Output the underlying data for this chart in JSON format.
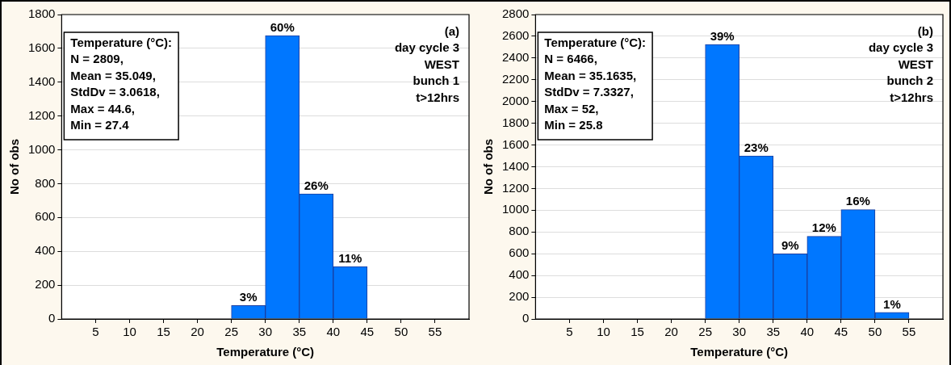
{
  "chart_data": [
    {
      "type": "histogram",
      "xlabel": "Temperature (°C)",
      "ylabel": "No of obs",
      "bins": [
        25,
        30,
        35,
        40,
        45
      ],
      "values": [
        80,
        1675,
        740,
        310
      ],
      "color": "#0077ff",
      "xlim": [
        0,
        60
      ],
      "xticks": [
        5,
        10,
        15,
        20,
        25,
        30,
        35,
        40,
        45,
        50,
        55
      ],
      "ylim": [
        0,
        1800
      ],
      "yticks": [
        0,
        200,
        400,
        600,
        800,
        1000,
        1200,
        1400,
        1600,
        1800
      ],
      "grid": "y",
      "annotations": [
        "Temperature (°C):\nN = 2809,\nMean = 35.049,\nStdDv = 3.0618,\nMax = 44.6,\nMin = 27.4",
        "(a)\nday cycle 3\nWEST\nbunch 1\nt>12hrs",
        {
          "text": "3%",
          "x": 27.5,
          "y": 80
        },
        {
          "text": "60%",
          "x": 32.5,
          "y": 1675
        },
        {
          "text": "26%",
          "x": 37.5,
          "y": 740
        },
        {
          "text": "11%",
          "x": 42.5,
          "y": 310
        }
      ]
    },
    {
      "type": "histogram",
      "xlabel": "Temperature (°C)",
      "ylabel": "No of obs",
      "bins": [
        25,
        30,
        35,
        40,
        45,
        50,
        55
      ],
      "values": [
        2525,
        1500,
        600,
        760,
        1005,
        60
      ],
      "color": "#0077ff",
      "xlim": [
        0,
        60
      ],
      "xticks": [
        5,
        10,
        15,
        20,
        25,
        30,
        35,
        40,
        45,
        50,
        55
      ],
      "ylim": [
        0,
        2800
      ],
      "yticks": [
        0,
        200,
        400,
        600,
        800,
        1000,
        1200,
        1400,
        1600,
        1800,
        2000,
        2200,
        2400,
        2600,
        2800
      ],
      "grid": "y",
      "annotations": [
        "Temperature (°C):\nN = 6466,\nMean = 35.1635,\nStdDv = 7.3327,\nMax = 52,\nMin = 25.8",
        "(b)\nday cycle 3\nWEST\nbunch 2\nt>12hrs",
        {
          "text": "39%",
          "x": 27.5,
          "y": 2525
        },
        {
          "text": "23%",
          "x": 32.5,
          "y": 1500
        },
        {
          "text": "9%",
          "x": 37.5,
          "y": 600
        },
        {
          "text": "12%",
          "x": 42.5,
          "y": 760
        },
        {
          "text": "16%",
          "x": 47.5,
          "y": 1005
        },
        {
          "text": "1%",
          "x": 52.5,
          "y": 60
        }
      ]
    }
  ]
}
